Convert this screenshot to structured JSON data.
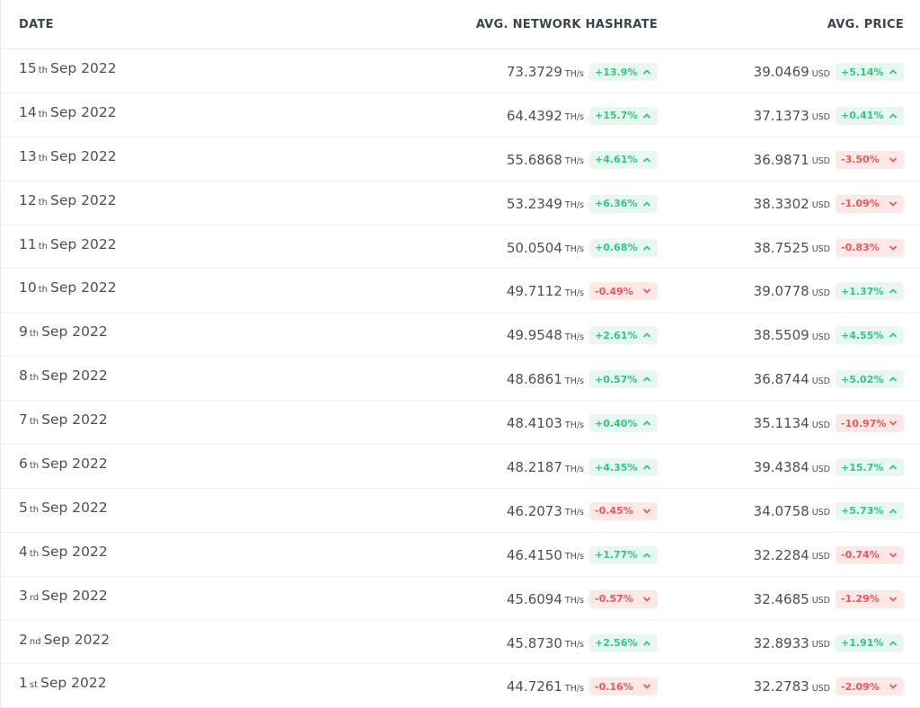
{
  "header": {
    "date_label": "DATE",
    "hashrate_label": "AVG. NETWORK HASHRATE",
    "price_label": "AVG. PRICE"
  },
  "units": {
    "hashrate": "TH/s",
    "price": "USD"
  },
  "colors": {
    "up": "#2ec784",
    "up_bg": "#e8f8f0",
    "down": "#f05656",
    "down_bg": "#fde8e8"
  },
  "icons": {
    "up": "chevron-up-icon",
    "down": "chevron-down-icon"
  },
  "rows": [
    {
      "day": "15",
      "suffix": "th",
      "month_year": "Sep 2022",
      "hashrate": "73.3729",
      "hash_change": "+13.9%",
      "hash_dir": "up",
      "price": "39.0469",
      "price_change": "+5.14%",
      "price_dir": "up"
    },
    {
      "day": "14",
      "suffix": "th",
      "month_year": "Sep 2022",
      "hashrate": "64.4392",
      "hash_change": "+15.7%",
      "hash_dir": "up",
      "price": "37.1373",
      "price_change": "+0.41%",
      "price_dir": "up"
    },
    {
      "day": "13",
      "suffix": "th",
      "month_year": "Sep 2022",
      "hashrate": "55.6868",
      "hash_change": "+4.61%",
      "hash_dir": "up",
      "price": "36.9871",
      "price_change": "-3.50%",
      "price_dir": "down"
    },
    {
      "day": "12",
      "suffix": "th",
      "month_year": "Sep 2022",
      "hashrate": "53.2349",
      "hash_change": "+6.36%",
      "hash_dir": "up",
      "price": "38.3302",
      "price_change": "-1.09%",
      "price_dir": "down"
    },
    {
      "day": "11",
      "suffix": "th",
      "month_year": "Sep 2022",
      "hashrate": "50.0504",
      "hash_change": "+0.68%",
      "hash_dir": "up",
      "price": "38.7525",
      "price_change": "-0.83%",
      "price_dir": "down"
    },
    {
      "day": "10",
      "suffix": "th",
      "month_year": "Sep 2022",
      "hashrate": "49.7112",
      "hash_change": "-0.49%",
      "hash_dir": "down",
      "price": "39.0778",
      "price_change": "+1.37%",
      "price_dir": "up"
    },
    {
      "day": "9",
      "suffix": "th",
      "month_year": "Sep 2022",
      "hashrate": "49.9548",
      "hash_change": "+2.61%",
      "hash_dir": "up",
      "price": "38.5509",
      "price_change": "+4.55%",
      "price_dir": "up"
    },
    {
      "day": "8",
      "suffix": "th",
      "month_year": "Sep 2022",
      "hashrate": "48.6861",
      "hash_change": "+0.57%",
      "hash_dir": "up",
      "price": "36.8744",
      "price_change": "+5.02%",
      "price_dir": "up"
    },
    {
      "day": "7",
      "suffix": "th",
      "month_year": "Sep 2022",
      "hashrate": "48.4103",
      "hash_change": "+0.40%",
      "hash_dir": "up",
      "price": "35.1134",
      "price_change": "-10.97%",
      "price_dir": "down"
    },
    {
      "day": "6",
      "suffix": "th",
      "month_year": "Sep 2022",
      "hashrate": "48.2187",
      "hash_change": "+4.35%",
      "hash_dir": "up",
      "price": "39.4384",
      "price_change": "+15.7%",
      "price_dir": "up"
    },
    {
      "day": "5",
      "suffix": "th",
      "month_year": "Sep 2022",
      "hashrate": "46.2073",
      "hash_change": "-0.45%",
      "hash_dir": "down",
      "price": "34.0758",
      "price_change": "+5.73%",
      "price_dir": "up"
    },
    {
      "day": "4",
      "suffix": "th",
      "month_year": "Sep 2022",
      "hashrate": "46.4150",
      "hash_change": "+1.77%",
      "hash_dir": "up",
      "price": "32.2284",
      "price_change": "-0.74%",
      "price_dir": "down"
    },
    {
      "day": "3",
      "suffix": "rd",
      "month_year": "Sep 2022",
      "hashrate": "45.6094",
      "hash_change": "-0.57%",
      "hash_dir": "down",
      "price": "32.4685",
      "price_change": "-1.29%",
      "price_dir": "down"
    },
    {
      "day": "2",
      "suffix": "nd",
      "month_year": "Sep 2022",
      "hashrate": "45.8730",
      "hash_change": "+2.56%",
      "hash_dir": "up",
      "price": "32.8933",
      "price_change": "+1.91%",
      "price_dir": "up"
    },
    {
      "day": "1",
      "suffix": "st",
      "month_year": "Sep 2022",
      "hashrate": "44.7261",
      "hash_change": "-0.16%",
      "hash_dir": "down",
      "price": "32.2783",
      "price_change": "-2.09%",
      "price_dir": "down"
    }
  ]
}
